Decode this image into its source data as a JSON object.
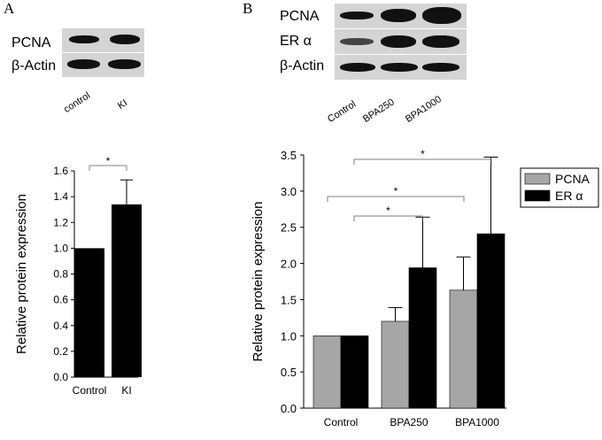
{
  "panels": {
    "a": {
      "label": "A",
      "blot_rows": [
        "PCNA",
        "β-Actin"
      ],
      "lanes": [
        "control",
        "KI"
      ]
    },
    "b": {
      "label": "B",
      "blot_rows": [
        "PCNA",
        "ER α",
        "β-Actin"
      ],
      "lanes": [
        "Control",
        "BPA250",
        "BPA1000"
      ]
    }
  },
  "colors": {
    "pcna": "#a6a6a6",
    "er_alpha": "#000000",
    "bar_a": "#000000",
    "axis": "#000000",
    "bracket": "#808080"
  },
  "chart_data": [
    {
      "type": "bar",
      "categories": [
        "Control",
        "KI"
      ],
      "values": [
        1.0,
        1.34
      ],
      "errors": [
        0,
        0.19
      ],
      "ylabel": "Relative protein expression",
      "xlabel": "",
      "ylim": [
        0.0,
        1.6
      ],
      "yticks": [
        "0.0",
        "0.2",
        "0.4",
        "0.6",
        "0.8",
        "1.0",
        "1.2",
        "1.4",
        "1.6"
      ],
      "significance": [
        {
          "between": [
            "Control",
            "KI"
          ],
          "label": "*"
        }
      ],
      "grid": false
    },
    {
      "type": "bar",
      "categories": [
        "Control",
        "BPA250",
        "BPA1000"
      ],
      "series": [
        {
          "name": "PCNA",
          "values": [
            1.0,
            1.2,
            1.63
          ],
          "errors": [
            0,
            0.19,
            0.46
          ]
        },
        {
          "name": "ER α",
          "values": [
            1.0,
            1.94,
            2.41
          ],
          "errors": [
            0,
            0.7,
            1.06
          ]
        }
      ],
      "ylabel": "Relative protein expression",
      "xlabel": "",
      "ylim": [
        0.0,
        3.5
      ],
      "yticks": [
        "0.0",
        "0.5",
        "1.0",
        "1.5",
        "2.0",
        "2.5",
        "3.0",
        "3.5"
      ],
      "legend": "top-right",
      "significance": [
        {
          "between": [
            "Control",
            "BPA1000"
          ],
          "label": "*"
        },
        {
          "between": [
            "Control",
            "BPA1000"
          ],
          "label": "*"
        },
        {
          "between": [
            "Control",
            "BPA250"
          ],
          "label": "*"
        }
      ],
      "grid": false
    }
  ]
}
